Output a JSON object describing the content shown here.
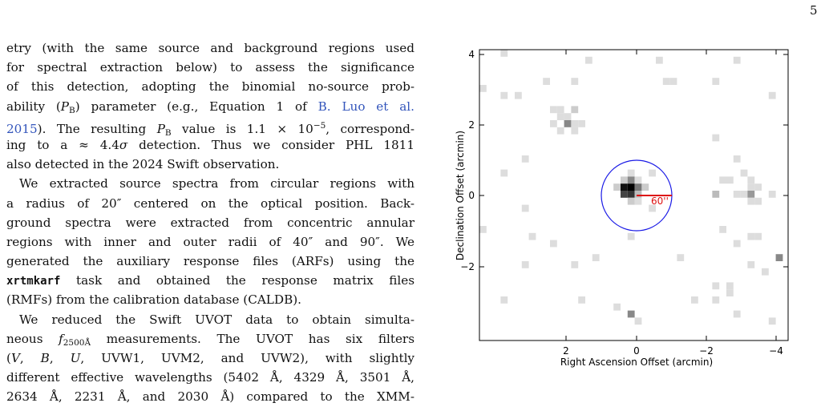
{
  "page_number": "5",
  "text": {
    "lines": [
      [
        "etry (with the same source and background regions used"
      ],
      [
        "for spectral extraction below) to assess the significance"
      ],
      [
        "of this detection, adopting the binomial no-source prob-"
      ],
      [
        "ability (",
        "P",
        "B",
        ") parameter (e.g., Equation 1 of ",
        "B. Luo et al."
      ],
      [
        "2015",
        "). The resulting ",
        "P",
        "B",
        " value is 1.1 × 10",
        "−5",
        ", correspond-"
      ],
      [
        "ing to a ≈ 4.4",
        "σ",
        " detection. Thus we consider PHL 1811"
      ],
      [
        "also detected in the 2024 Swift observation."
      ],
      [
        "We extracted source spectra from circular regions with"
      ],
      [
        "a radius of 20″ centered on the optical position. Back-"
      ],
      [
        "ground spectra were extracted from concentric annular"
      ],
      [
        "regions with inner and outer radii of 40″ and 90″. We"
      ],
      [
        "generated the auxiliary response files (ARFs) using the"
      ],
      [
        "xrtmkarf",
        " task and obtained the response matrix files"
      ],
      [
        "(RMFs) from the calibration database (CALDB)."
      ],
      [
        "We reduced the Swift UVOT data to obtain simulta-"
      ],
      [
        "neous ",
        "f",
        "2500Å",
        " measurements. The UVOT has six filters"
      ],
      [
        "(",
        "V",
        ", ",
        "B",
        ", ",
        "U",
        ", UVW1, UVM2, and UVW2), with slightly"
      ],
      [
        "different effective wavelengths (5402 Å, 4329 Å, 3501 Å,"
      ],
      [
        "2634 Å, 2231 Å, and 2030 Å) compared to the XMM-"
      ]
    ]
  },
  "figure": {
    "x_axis_label": "Right Ascension Offset (arcmin)",
    "y_axis_label": "Declination Offset (arcmin)",
    "x_ticks": [
      "2",
      "0",
      "−2",
      "−4"
    ],
    "y_ticks": [
      "4",
      "2",
      "0",
      "−2"
    ],
    "annotation": "60''"
  }
}
